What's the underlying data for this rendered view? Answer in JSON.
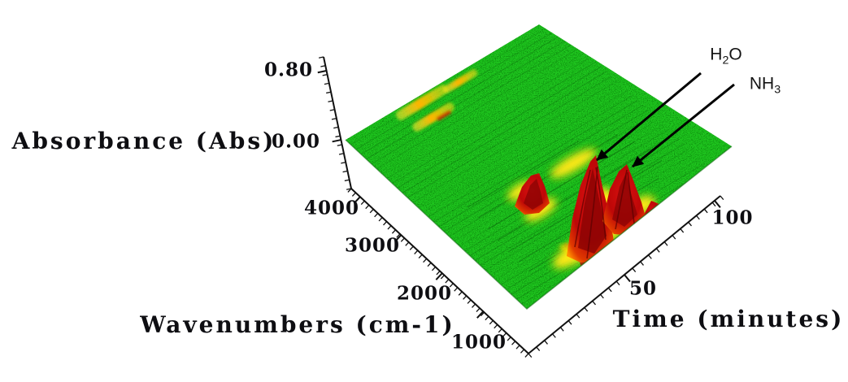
{
  "chart_data": {
    "type": "surface",
    "description": "Time-resolved FTIR evolved-gas 3D surface plot: absorbance vs wavenumber vs time. Flat noisy green baseline near 0.00 Abs with a strong red peak cluster (H2O and NH3 evolution) at low wavenumbers around 40-85 minutes, and weak yellow-orange bands near 3600-3900 cm-1 around 20-50 minutes.",
    "x_axis": {
      "label": "Wavenumbers (cm-1)",
      "ticks": [
        4000,
        3000,
        2000,
        1000
      ],
      "range": [
        4000,
        900
      ],
      "orientation": "front-left edge, values decrease toward lower right"
    },
    "y_axis": {
      "label": "Time (minutes)",
      "ticks": [
        50,
        100
      ],
      "range": [
        0,
        105
      ],
      "orientation": "front-right edge, values increase toward upper right"
    },
    "z_axis": {
      "label": "Absorbance (Abs)",
      "ticks": [
        0.8,
        0.0
      ],
      "range": [
        0.0,
        0.8
      ]
    },
    "grid": false,
    "legend": "none",
    "colormap": [
      {
        "level": "low (~0.0 Abs)",
        "color": "#1fc71f"
      },
      {
        "level": "mid",
        "color": "#ffe400"
      },
      {
        "level": "high (~0.8 Abs)",
        "color": "#c00a0a"
      }
    ],
    "features": [
      {
        "name": "H2O evolution peak",
        "wavenumber_cm1": 1630,
        "time_minutes": [
          40,
          75
        ],
        "peak_absorbance": 0.8
      },
      {
        "name": "NH3 evolution peak",
        "wavenumber_cm1": 1150,
        "time_minutes": [
          45,
          85
        ],
        "peak_absorbance": 0.55
      },
      {
        "name": "weak unlabeled high-wavenumber bands",
        "wavenumber_cm1": 3750,
        "time_minutes": [
          20,
          50
        ],
        "peak_absorbance": 0.15
      }
    ]
  },
  "labels": {
    "z_title": "Absorbance (Abs)",
    "z_tick_top": "0.80",
    "z_tick_zero": "0.00",
    "x_title": "Wavenumbers (cm-1)",
    "x_ticks": [
      "4000",
      "3000",
      "2000",
      "1000"
    ],
    "y_title": "Time (minutes)",
    "y_ticks": [
      "50",
      "100"
    ],
    "annotations": {
      "h2o": {
        "prefix": "H",
        "sub": "2",
        "suffix": "O"
      },
      "nh3": {
        "prefix": "NH",
        "sub": "3",
        "suffix": ""
      }
    }
  },
  "colors": {
    "surface_green": "#1fc71f",
    "peak_red": "#c00a0a",
    "halo_yellow": "#ffe913",
    "axis_black": "#111111",
    "background": "#ffffff"
  }
}
